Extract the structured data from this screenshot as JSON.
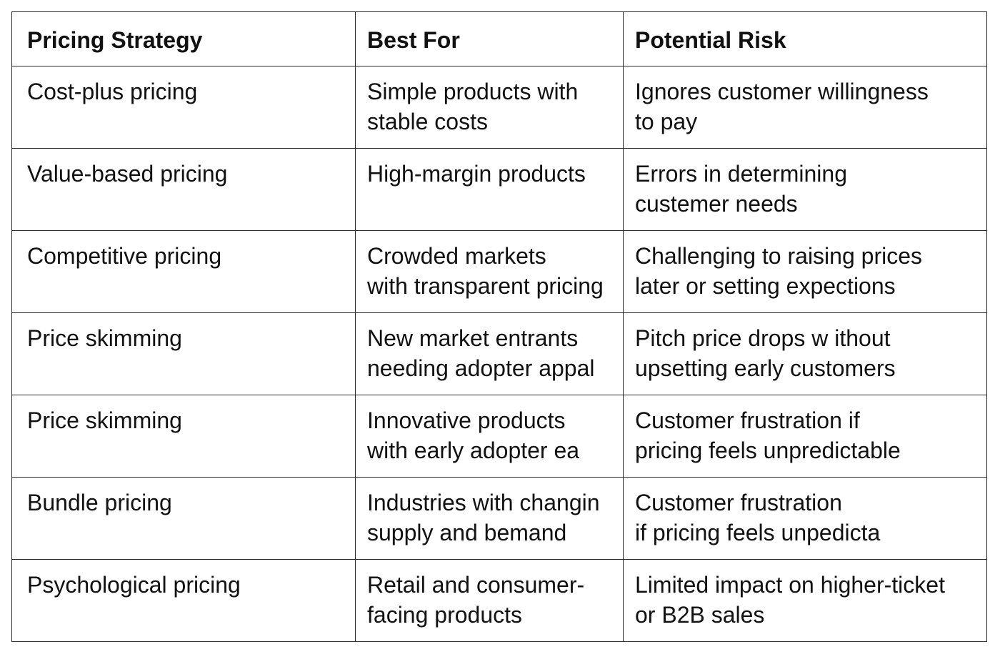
{
  "table": {
    "headers": [
      "Pricing Strategy",
      "Best For",
      "Potential Risk"
    ],
    "rows": [
      {
        "strategy": "Cost-plus pricing",
        "best_for": [
          "Simple products with",
          "stable costs"
        ],
        "risk": [
          "Ignores customer willingness",
          "to pay"
        ]
      },
      {
        "strategy": "Value-based pricing",
        "best_for": [
          "High-margin products"
        ],
        "risk": [
          "Errors in determining",
          "custemer needs"
        ]
      },
      {
        "strategy": "Competitive pricing",
        "best_for": [
          "Crowded markets",
          "with transparent pricing"
        ],
        "risk": [
          "Challenging to raising prices",
          "later or setting expections"
        ]
      },
      {
        "strategy": "Price skimming",
        "best_for": [
          "New market entrants",
          "needing adopter appal"
        ],
        "risk": [
          "Pitch price drops w ithout",
          "upsetting early customers"
        ]
      },
      {
        "strategy": "Price skimming",
        "best_for": [
          "Innovative products",
          "with early adopter ea"
        ],
        "risk": [
          "Customer frustration if",
          "pricing feels unpredictable"
        ]
      },
      {
        "strategy": "Bundle pricing",
        "best_for": [
          "Industries with changin",
          "supply and bemand"
        ],
        "risk": [
          "Customer frustration",
          "if pricing feels unpedicta"
        ]
      },
      {
        "strategy": "Psychological pricing",
        "best_for": [
          "Retail and consumer-",
          "facing products"
        ],
        "risk": [
          "Limited impact on higher-ticket",
          "or B2B sales"
        ]
      }
    ]
  }
}
